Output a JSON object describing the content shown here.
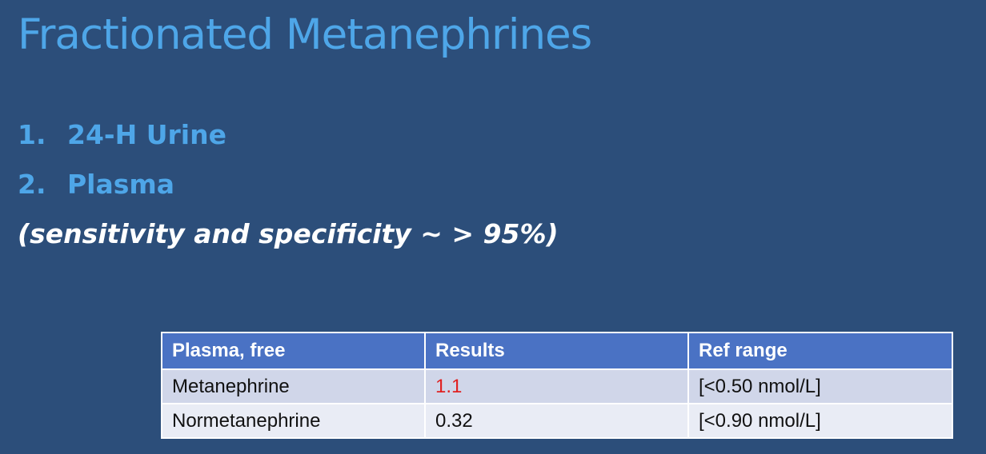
{
  "slide": {
    "title": "Fractionated Metanephrines",
    "list": [
      {
        "number": "1.",
        "text": "24-H Urine"
      },
      {
        "number": "2.",
        "text": "Plasma"
      }
    ],
    "note": "(sensitivity and specificity ~ > 95%)"
  },
  "results_table": {
    "headers": [
      "Plasma, free",
      "Results",
      "Ref range"
    ],
    "rows": [
      {
        "analyte": "Metanephrine",
        "result": "1.1",
        "ref_range": "[<0.50 nmol/L]",
        "flagged": true
      },
      {
        "analyte": "Normetanephrine",
        "result": "0.32",
        "ref_range": "[<0.90 nmol/L]",
        "flagged": false
      }
    ]
  },
  "colors": {
    "background": "#2c4e7a",
    "title": "#4ea6e8",
    "header_fill": "#4a72c4",
    "row_fill_a": "#d0d6e9",
    "row_fill_b": "#e9ecf5",
    "abnormal_value": "#e02020"
  }
}
